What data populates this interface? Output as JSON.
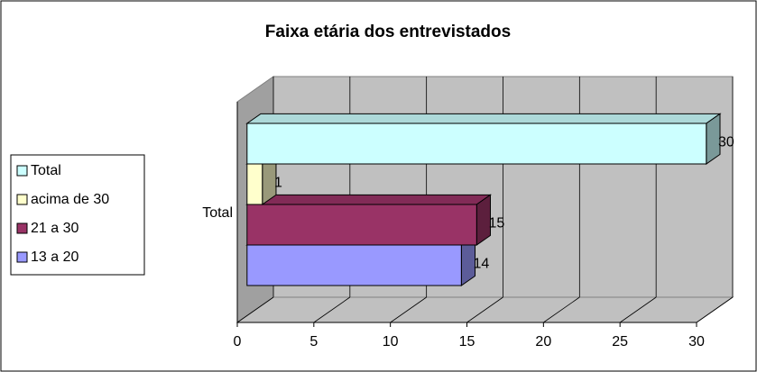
{
  "chart_data": {
    "type": "bar3d",
    "orientation": "horizontal",
    "title": "Faixa etária dos entrevistados",
    "categories": [
      "Total"
    ],
    "series": [
      {
        "name": "Total",
        "color": "#ccffff",
        "values": [
          30
        ]
      },
      {
        "name": "acima de 30",
        "color": "#ffffcc",
        "values": [
          1
        ]
      },
      {
        "name": "21 a 30",
        "color": "#993366",
        "values": [
          15
        ]
      },
      {
        "name": "13 a 20",
        "color": "#9999ff",
        "values": [
          14
        ]
      }
    ],
    "xlim": [
      0,
      30
    ],
    "xticks": [
      0,
      5,
      10,
      15,
      20,
      25,
      30
    ],
    "grid": true,
    "legend": "left"
  }
}
